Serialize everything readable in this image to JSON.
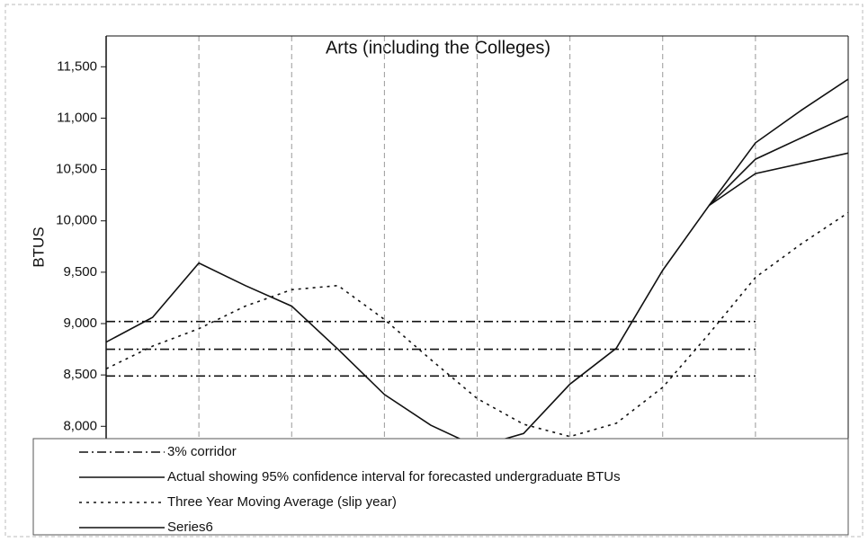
{
  "chart_data": {
    "type": "line",
    "title": "Arts (including the Colleges)",
    "y_label": "BTUS",
    "categories": [
      null,
      null,
      null,
      null,
      null,
      null,
      null,
      null,
      null,
      null,
      null,
      null,
      null,
      null,
      null,
      null,
      null
    ],
    "ylim": [
      7880,
      11800
    ],
    "yticks": [
      {
        "value": 8000,
        "label": "8,000"
      },
      {
        "value": 8500,
        "label": "8,500"
      },
      {
        "value": 9000,
        "label": "9,000"
      },
      {
        "value": 9500,
        "label": "9,500"
      },
      {
        "value": 10000,
        "label": "10,000"
      },
      {
        "value": 10500,
        "label": "10,500"
      },
      {
        "value": 11000,
        "label": "11,000"
      },
      {
        "value": 11500,
        "label": "11,500"
      }
    ],
    "grid": true,
    "series": [
      {
        "name": "3% corridor",
        "color": "#111111",
        "style": "dashdot",
        "values": [
          9020,
          9020,
          9020,
          9020,
          9020,
          9020,
          9020,
          9020,
          9020,
          9020,
          9020,
          9020,
          9020,
          9020,
          9020,
          null,
          null
        ]
      },
      {
        "color": "#111111",
        "style": "dashdot",
        "values": [
          8750,
          8750,
          8750,
          8750,
          8750,
          8750,
          8750,
          8750,
          8750,
          8750,
          8750,
          8750,
          8750,
          8750,
          8750,
          null,
          null
        ]
      },
      {
        "color": "#111111",
        "style": "dashdot",
        "values": [
          8490,
          8490,
          8490,
          8490,
          8490,
          8490,
          8490,
          8490,
          8490,
          8490,
          8490,
          8490,
          8490,
          8490,
          8490,
          null,
          null
        ]
      },
      {
        "name": "Actual showing 95% confidence interval for forecasted undergraduate BTUs",
        "color": "#111111",
        "style": "solid",
        "values": [
          8820,
          9060,
          9590,
          9370,
          9170,
          8750,
          8310,
          8010,
          7800,
          7930,
          8410,
          8760,
          9520,
          10150,
          10600,
          10810,
          11020
        ]
      },
      {
        "name": "Three Year Moving Average (slip year)",
        "color": "#111111",
        "style": "dotted",
        "values": [
          8560,
          8780,
          8950,
          9170,
          9330,
          9370,
          9040,
          8650,
          8270,
          8020,
          7900,
          8030,
          8380,
          8900,
          9450,
          9780,
          10080
        ]
      },
      {
        "name": "Series6",
        "color": "#111111",
        "style": "solid",
        "values": [
          null,
          null,
          null,
          null,
          null,
          null,
          null,
          null,
          null,
          null,
          null,
          null,
          null,
          10150,
          10760,
          11080,
          11380
        ]
      },
      {
        "color": "#111111",
        "style": "solid",
        "values": [
          null,
          null,
          null,
          null,
          null,
          null,
          null,
          null,
          null,
          null,
          null,
          null,
          null,
          10150,
          10460,
          10560,
          10660
        ]
      }
    ]
  }
}
